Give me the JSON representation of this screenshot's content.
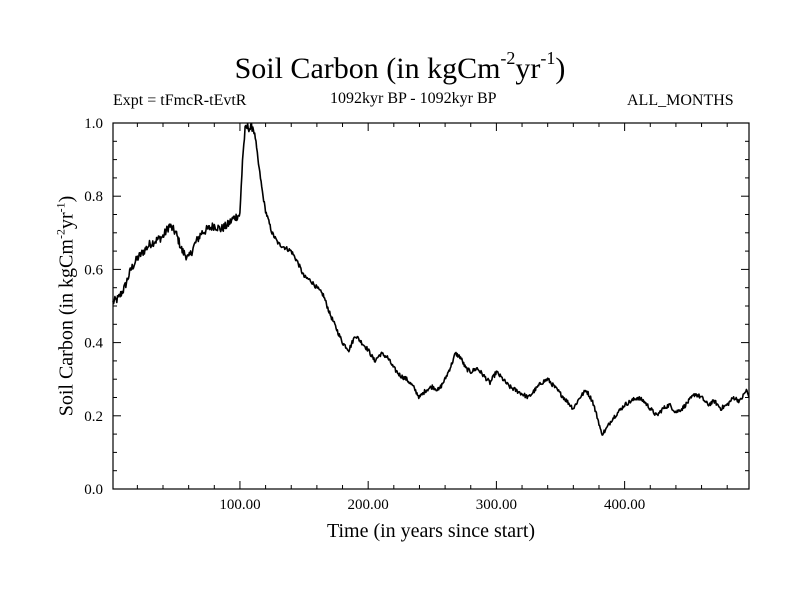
{
  "header": {
    "title": "Soil Carbon (in kgCm",
    "title_exp1": "-2",
    "title_mid": "yr",
    "title_exp2": "-1",
    "title_end": ")",
    "experiment": "Expt = tFmcR-tEvtR",
    "period": "1092kyr BP - 1092kyr BP",
    "months": "ALL_MONTHS"
  },
  "chart_data": {
    "type": "line",
    "title": "Soil Carbon (in kgCm-2yr-1)",
    "xlabel": "Time (in years since start)",
    "ylabel": "Soil Carbon (in kgCm-2yr-1)",
    "ylabel_parts": {
      "pre": "Soil Carbon (in kgCm",
      "exp1": "-2",
      "mid": "yr",
      "exp2": "-1",
      "end": ")"
    },
    "xlim": [
      1,
      497
    ],
    "ylim": [
      0,
      1.0
    ],
    "x_ticks": [
      100,
      200,
      300,
      400
    ],
    "x_tick_labels": [
      "100.00",
      "200.00",
      "300.00",
      "400.00"
    ],
    "y_ticks": [
      0,
      0.2,
      0.4,
      0.6,
      0.8,
      1.0
    ],
    "y_tick_labels": [
      "0.0",
      "0.2",
      "0.4",
      "0.6",
      "0.8",
      "1.0"
    ],
    "grid": false,
    "color": "#000000",
    "series": [
      {
        "name": "Soil Carbon",
        "x": [
          1,
          5,
          10,
          15,
          20,
          25,
          30,
          35,
          40,
          45,
          50,
          55,
          60,
          65,
          70,
          75,
          80,
          85,
          90,
          95,
          100,
          102,
          104,
          106,
          108,
          110,
          112,
          114,
          116,
          118,
          120,
          125,
          130,
          135,
          140,
          145,
          150,
          155,
          160,
          165,
          170,
          175,
          180,
          185,
          190,
          195,
          200,
          205,
          210,
          215,
          220,
          225,
          230,
          235,
          240,
          245,
          250,
          255,
          260,
          265,
          268,
          272,
          276,
          280,
          285,
          290,
          295,
          300,
          305,
          310,
          315,
          320,
          325,
          330,
          335,
          340,
          345,
          350,
          355,
          360,
          365,
          370,
          375,
          380,
          382,
          385,
          390,
          395,
          400,
          405,
          410,
          415,
          420,
          425,
          430,
          435,
          440,
          445,
          450,
          455,
          460,
          465,
          470,
          475,
          480,
          485,
          490,
          495,
          497
        ],
        "values": [
          0.51,
          0.52,
          0.55,
          0.6,
          0.63,
          0.65,
          0.67,
          0.68,
          0.69,
          0.72,
          0.7,
          0.65,
          0.63,
          0.67,
          0.7,
          0.71,
          0.72,
          0.71,
          0.72,
          0.74,
          0.75,
          0.9,
          0.98,
          0.99,
          0.985,
          0.99,
          0.96,
          0.9,
          0.85,
          0.8,
          0.76,
          0.7,
          0.67,
          0.66,
          0.65,
          0.62,
          0.58,
          0.57,
          0.55,
          0.53,
          0.48,
          0.44,
          0.4,
          0.38,
          0.42,
          0.4,
          0.38,
          0.35,
          0.37,
          0.36,
          0.33,
          0.31,
          0.3,
          0.28,
          0.25,
          0.27,
          0.28,
          0.27,
          0.3,
          0.34,
          0.37,
          0.36,
          0.33,
          0.32,
          0.33,
          0.31,
          0.29,
          0.32,
          0.3,
          0.28,
          0.27,
          0.26,
          0.25,
          0.27,
          0.29,
          0.3,
          0.28,
          0.26,
          0.24,
          0.22,
          0.25,
          0.27,
          0.24,
          0.18,
          0.15,
          0.16,
          0.19,
          0.21,
          0.23,
          0.24,
          0.25,
          0.24,
          0.22,
          0.2,
          0.22,
          0.23,
          0.21,
          0.22,
          0.24,
          0.26,
          0.25,
          0.23,
          0.24,
          0.22,
          0.23,
          0.25,
          0.24,
          0.27,
          0.25
        ]
      }
    ]
  }
}
